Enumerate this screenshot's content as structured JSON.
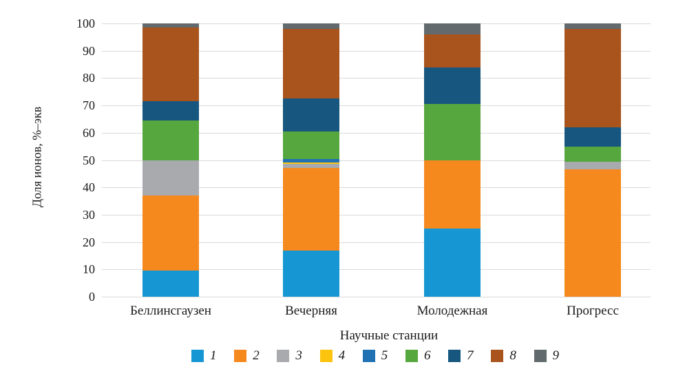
{
  "figure": {
    "background": "#ffffff",
    "grid_color": "#d9d9d9",
    "text_color": "#1a1a1a"
  },
  "chart_data": {
    "type": "bar",
    "stacked": true,
    "title": "",
    "xlabel": "Научные станции",
    "ylabel": "Доля ионов, %–экв",
    "ylim": [
      0,
      100
    ],
    "yticks": [
      0,
      10,
      20,
      30,
      40,
      50,
      60,
      70,
      80,
      90,
      100
    ],
    "grid": true,
    "legend_position": "bottom",
    "categories": [
      "Беллинсгаузен",
      "Вечерняя",
      "Молодежная",
      "Прогресс"
    ],
    "series": [
      {
        "name": "1",
        "color": "#1697d3",
        "values": [
          9.5,
          17,
          25,
          0
        ]
      },
      {
        "name": "2",
        "color": "#f6891e",
        "values": [
          27.5,
          30,
          25,
          46.5
        ]
      },
      {
        "name": "3",
        "color": "#a8aaad",
        "values": [
          13,
          1.5,
          0,
          3
        ]
      },
      {
        "name": "4",
        "color": "#fcc40e",
        "values": [
          0,
          0.7,
          0,
          0
        ]
      },
      {
        "name": "5",
        "color": "#2071b4",
        "values": [
          0,
          1.3,
          0,
          0
        ]
      },
      {
        "name": "6",
        "color": "#56a73e",
        "values": [
          14.5,
          10,
          20.5,
          5.5
        ]
      },
      {
        "name": "7",
        "color": "#16567f",
        "values": [
          7,
          12,
          13.5,
          7
        ]
      },
      {
        "name": "8",
        "color": "#a9541d",
        "values": [
          27,
          25.5,
          12,
          36
        ]
      },
      {
        "name": "9",
        "color": "#626a6d",
        "values": [
          1.5,
          2,
          4,
          2
        ]
      }
    ]
  }
}
